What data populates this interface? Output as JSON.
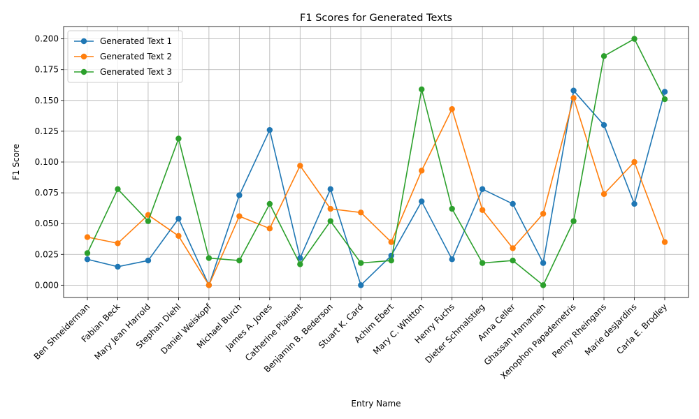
{
  "chart_data": {
    "type": "line",
    "title": "F1 Scores for Generated Texts",
    "xlabel": "Entry Name",
    "ylabel": "F1 Score",
    "ylim": [
      -0.01,
      0.21
    ],
    "yticks": [
      "0.000",
      "0.025",
      "0.050",
      "0.075",
      "0.100",
      "0.125",
      "0.150",
      "0.175",
      "0.200"
    ],
    "grid": true,
    "legend_position": "top-left",
    "categories": [
      "Ben Shneiderman",
      "Fabian Beck",
      "Mary Jean Harrold",
      "Stephan Diehl",
      "Daniel Weiskopf",
      "Michael Burch",
      "James A. Jones",
      "Catherine Plaisant",
      "Benjamin B. Bederson",
      "Stuart K. Card",
      "Achim Ebert",
      "Mary C. Whitton",
      "Henry Fuchs",
      "Dieter Schmalstieg",
      "Anna Celler",
      "Ghassan Hamarneh",
      "Xenophon Papademetris",
      "Penny Rheingans",
      "Marie desJardins",
      "Carla E. Brodley"
    ],
    "series": [
      {
        "name": "Generated Text 1",
        "color": "#1f77b4",
        "values": [
          0.021,
          0.015,
          0.02,
          0.054,
          0.0,
          0.073,
          0.126,
          0.022,
          0.078,
          0.0,
          0.024,
          0.068,
          0.021,
          0.078,
          0.066,
          0.018,
          0.158,
          0.13,
          0.066,
          0.157
        ]
      },
      {
        "name": "Generated Text 2",
        "color": "#ff7f0e",
        "values": [
          0.039,
          0.034,
          0.057,
          0.04,
          0.0,
          0.056,
          0.046,
          0.097,
          0.062,
          0.059,
          0.035,
          0.093,
          0.143,
          0.061,
          0.03,
          0.058,
          0.152,
          0.074,
          0.1,
          0.035
        ]
      },
      {
        "name": "Generated Text 3",
        "color": "#2ca02c",
        "values": [
          0.026,
          0.078,
          0.052,
          0.119,
          0.022,
          0.02,
          0.066,
          0.017,
          0.052,
          0.018,
          0.02,
          0.159,
          0.062,
          0.018,
          0.02,
          0.0,
          0.052,
          0.186,
          0.2,
          0.151
        ]
      }
    ]
  }
}
